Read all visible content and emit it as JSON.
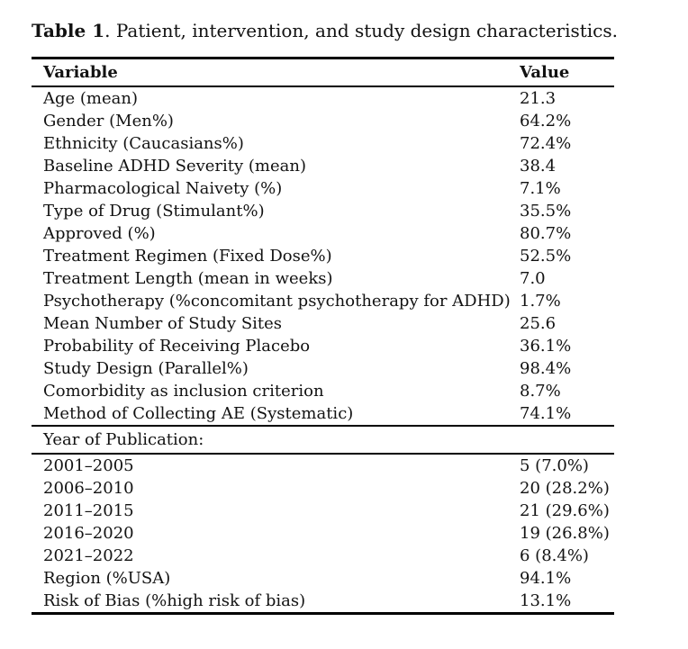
{
  "title": {
    "label_bold": "Table 1",
    "label_rest": ". Patient, intervention, and study design characteristics."
  },
  "table": {
    "headers": {
      "variable": "Variable",
      "value": "Value"
    },
    "rows": [
      {
        "variable": "Age (mean)",
        "value": "21.3"
      },
      {
        "variable": "Gender (Men%)",
        "value": "64.2%"
      },
      {
        "variable": "Ethnicity (Caucasians%)",
        "value": "72.4%"
      },
      {
        "variable": "Baseline ADHD Severity (mean)",
        "value": "38.4"
      },
      {
        "variable": "Pharmacological Naivety (%)",
        "value": "7.1%"
      },
      {
        "variable": "Type of Drug (Stimulant%)",
        "value": "35.5%"
      },
      {
        "variable": "Approved (%)",
        "value": "80.7%"
      },
      {
        "variable": "Treatment Regimen (Fixed Dose%)",
        "value": "52.5%"
      },
      {
        "variable": "Treatment Length (mean in weeks)",
        "value": "7.0"
      },
      {
        "variable": "Psychotherapy (%concomitant psychotherapy for ADHD)",
        "value": "1.7%"
      },
      {
        "variable": "Mean Number of Study Sites",
        "value": "25.6"
      },
      {
        "variable": "Probability of Receiving Placebo",
        "value": "36.1%"
      },
      {
        "variable": "Study Design (Parallel%)",
        "value": "98.4%"
      },
      {
        "variable": "Comorbidity as inclusion criterion",
        "value": "8.7%"
      },
      {
        "variable": "Method of Collecting AE (Systematic)",
        "value": "74.1%"
      }
    ],
    "section_label": "Year of Publication:",
    "section_rows": [
      {
        "variable": "2001–2005",
        "value": "5 (7.0%)"
      },
      {
        "variable": "2006–2010",
        "value": "20 (28.2%)"
      },
      {
        "variable": "2011–2015",
        "value": "21 (29.6%)"
      },
      {
        "variable": "2016–2020",
        "value": "19 (26.8%)"
      },
      {
        "variable": "2021–2022",
        "value": "6 (8.4%)"
      },
      {
        "variable": "Region (%USA)",
        "value": "94.1%"
      },
      {
        "variable": "Risk of Bias (%high risk of bias)",
        "value": "13.1%"
      }
    ]
  }
}
